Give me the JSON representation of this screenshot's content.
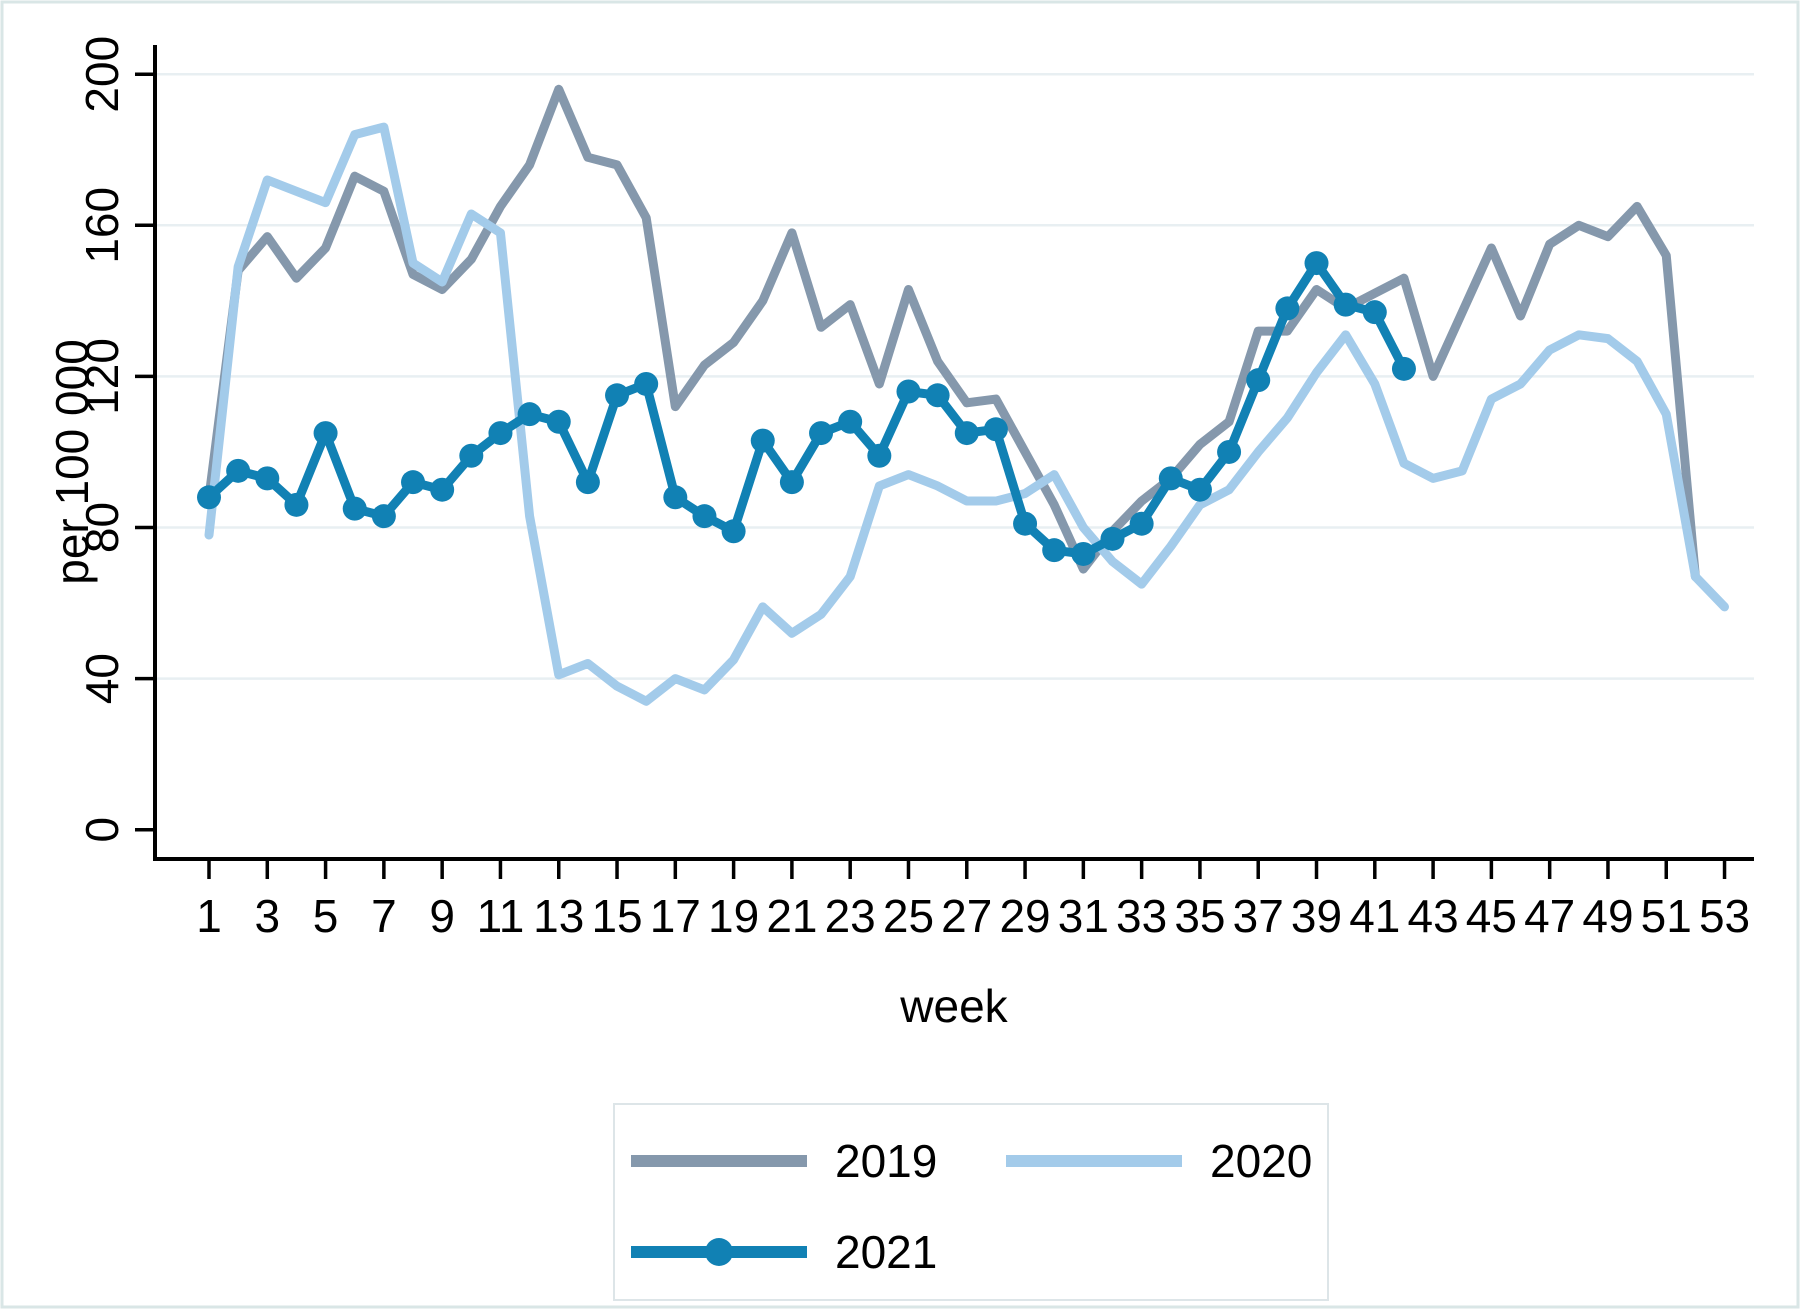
{
  "figure": {
    "background_color": "#ffffff",
    "border_color": "#d9e6e6"
  },
  "chart_data": {
    "type": "line",
    "title": "",
    "xlabel": "week",
    "ylabel": "per 100 000",
    "x_range": [
      1,
      53
    ],
    "ylim": [
      0,
      210
    ],
    "y_ticks": [
      0,
      40,
      80,
      120,
      160,
      200
    ],
    "y_gridlines": [
      40,
      80,
      120,
      160,
      200
    ],
    "x_tick_labels": [
      1,
      3,
      5,
      7,
      9,
      11,
      13,
      15,
      17,
      19,
      21,
      23,
      25,
      27,
      29,
      31,
      33,
      35,
      37,
      39,
      41,
      43,
      45,
      47,
      49,
      51,
      53
    ],
    "grid": "horizontal only, light",
    "axis_color": "#000000",
    "gridline_color": "#e8eff2",
    "legend": {
      "position": "bottom-center",
      "border_color": "#dde5e8",
      "entries": [
        {
          "label": "2019",
          "color": "#8598ac",
          "marker": "none"
        },
        {
          "label": "2020",
          "color": "#a3cbea",
          "marker": "none"
        },
        {
          "label": "2021",
          "color": "#1181b4",
          "marker": "circle"
        }
      ]
    },
    "series": [
      {
        "name": "2019",
        "color": "#8598ac",
        "marker": "none",
        "start_week": 1,
        "values": [
          88,
          148,
          157,
          146,
          154,
          173,
          169,
          147,
          143,
          151,
          165,
          176,
          196,
          178,
          176,
          162,
          112,
          123,
          129,
          140,
          158,
          133,
          139,
          118,
          143,
          124,
          113,
          114,
          100,
          86,
          69,
          79,
          87,
          93,
          102,
          108,
          132,
          132,
          143,
          138,
          142,
          146,
          120,
          137,
          154,
          136,
          155,
          160,
          157,
          165,
          152,
          67
        ]
      },
      {
        "name": "2020",
        "color": "#a3cbea",
        "marker": "none",
        "start_week": 1,
        "values": [
          78,
          149,
          172,
          169,
          166,
          184,
          186,
          150,
          145,
          163,
          158,
          83,
          41,
          44,
          38,
          34,
          40,
          37,
          45,
          59,
          52,
          57,
          67,
          91,
          94,
          91,
          87,
          87,
          89,
          94,
          80,
          71,
          65,
          75,
          86,
          90,
          100,
          109,
          121,
          131,
          118,
          97,
          93,
          95,
          114,
          118,
          127,
          131,
          130,
          124,
          110,
          67,
          59
        ]
      },
      {
        "name": "2021",
        "color": "#1181b4",
        "marker": "circle",
        "start_week": 1,
        "values": [
          88,
          95,
          93,
          86,
          105,
          85,
          83,
          92,
          90,
          99,
          105,
          110,
          108,
          92,
          115,
          118,
          88,
          83,
          79,
          103,
          92,
          105,
          108,
          99,
          116,
          115,
          105,
          106,
          81,
          74,
          73,
          77,
          81,
          93,
          90,
          100,
          119,
          138,
          150,
          139,
          137,
          122
        ]
      }
    ]
  }
}
